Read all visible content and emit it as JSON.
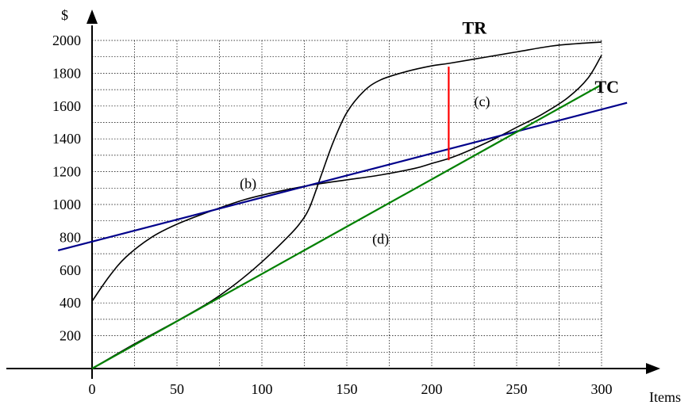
{
  "chart_data": {
    "type": "line",
    "title": "",
    "xlabel": "Items",
    "ylabel": "$",
    "xlim": [
      0,
      300
    ],
    "ylim": [
      0,
      2000
    ],
    "x_ticks": [
      0,
      50,
      100,
      150,
      200,
      250,
      300
    ],
    "y_ticks": [
      200,
      400,
      600,
      800,
      1000,
      1200,
      1400,
      1600,
      1800,
      2000
    ],
    "grid": true,
    "series": [
      {
        "name": "TR",
        "color": "#000000",
        "points": [
          [
            0,
            410
          ],
          [
            10,
            560
          ],
          [
            20,
            680
          ],
          [
            35,
            800
          ],
          [
            50,
            880
          ],
          [
            70,
            960
          ],
          [
            90,
            1030
          ],
          [
            110,
            1080
          ],
          [
            130,
            1120
          ],
          [
            150,
            1150
          ],
          [
            170,
            1180
          ],
          [
            190,
            1220
          ],
          [
            200,
            1250
          ],
          [
            210,
            1280
          ],
          [
            220,
            1320
          ],
          [
            235,
            1390
          ],
          [
            250,
            1470
          ],
          [
            265,
            1550
          ],
          [
            280,
            1650
          ],
          [
            292,
            1770
          ],
          [
            300,
            1910
          ]
        ]
      },
      {
        "name": "TC",
        "color": "#000000",
        "points": [
          [
            0,
            0
          ],
          [
            25,
            150
          ],
          [
            50,
            290
          ],
          [
            70,
            410
          ],
          [
            85,
            520
          ],
          [
            100,
            650
          ],
          [
            115,
            800
          ],
          [
            122,
            880
          ],
          [
            128,
            980
          ],
          [
            135,
            1180
          ],
          [
            142,
            1380
          ],
          [
            150,
            1560
          ],
          [
            160,
            1690
          ],
          [
            170,
            1760
          ],
          [
            185,
            1810
          ],
          [
            200,
            1845
          ],
          [
            210,
            1860
          ],
          [
            230,
            1895
          ],
          [
            250,
            1930
          ],
          [
            270,
            1965
          ],
          [
            285,
            1980
          ],
          [
            300,
            1990
          ]
        ]
      },
      {
        "name": "",
        "color": "#00008b",
        "points": [
          [
            -20,
            720
          ],
          [
            315,
            1620
          ]
        ]
      },
      {
        "name": "",
        "color": "#008000",
        "points": [
          [
            0,
            0
          ],
          [
            300,
            1730
          ]
        ]
      },
      {
        "name": "",
        "color": "#ff0000",
        "points": [
          [
            210,
            1270
          ],
          [
            210,
            1840
          ]
        ]
      }
    ],
    "annotations": [
      {
        "text": "(b)",
        "x": 87,
        "y": 1100
      },
      {
        "text": "(c)",
        "x": 225,
        "y": 1600
      },
      {
        "text": "(d)",
        "x": 165,
        "y": 760
      }
    ],
    "series_labels": [
      {
        "text": "TR",
        "x": 218,
        "y": 2040
      },
      {
        "text": "TC",
        "x": 296,
        "y": 1680
      }
    ]
  }
}
